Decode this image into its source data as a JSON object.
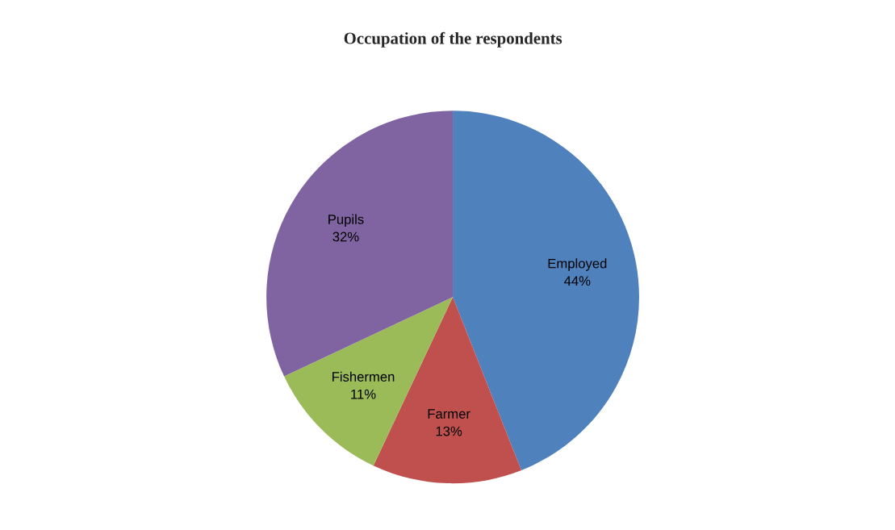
{
  "chart_data": {
    "type": "pie",
    "title": "Occupation of the respondents",
    "categories": [
      "Employed",
      "Farmer",
      "Fishermen",
      "Pupils"
    ],
    "values": [
      44,
      13,
      11,
      32
    ],
    "value_labels": [
      "44%",
      "13%",
      "11%",
      "32%"
    ],
    "colors": [
      "#4f81bd",
      "#c0504d",
      "#9bbb59",
      "#8064a2"
    ],
    "legend": false
  }
}
